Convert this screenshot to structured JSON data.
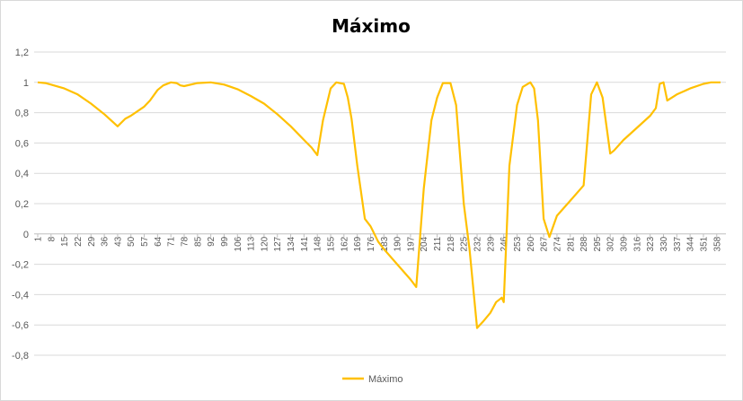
{
  "chart_data": {
    "type": "line",
    "title": "Máximo",
    "xlabel": "",
    "ylabel": "",
    "ylim": [
      -0.8,
      1.2
    ],
    "ystep": 0.2,
    "y_ticks": [
      "-0,8",
      "-0,6",
      "-0,4",
      "-0,2",
      "0",
      "0,2",
      "0,4",
      "0,6",
      "0,8",
      "1",
      "1,2"
    ],
    "x_range": [
      1,
      360
    ],
    "x_ticks": [
      1,
      8,
      15,
      22,
      29,
      36,
      43,
      50,
      57,
      64,
      71,
      78,
      85,
      92,
      99,
      106,
      113,
      120,
      127,
      134,
      141,
      148,
      155,
      162,
      169,
      176,
      183,
      190,
      197,
      204,
      211,
      218,
      225,
      232,
      239,
      246,
      253,
      260,
      267,
      274,
      281,
      288,
      295,
      302,
      309,
      316,
      323,
      330,
      337,
      344,
      351,
      358
    ],
    "grid": true,
    "legend": "bottom",
    "series": [
      {
        "name": "Máximo",
        "color": "#FFC000",
        "x": [
          1,
          5,
          8,
          15,
          22,
          29,
          36,
          43,
          47,
          50,
          57,
          60,
          64,
          67,
          71,
          74,
          76,
          78,
          85,
          92,
          99,
          106,
          113,
          120,
          127,
          134,
          141,
          145,
          148,
          151,
          155,
          158,
          162,
          164,
          166,
          169,
          173,
          176,
          180,
          183,
          190,
          197,
          200,
          204,
          208,
          211,
          214,
          218,
          221,
          225,
          228,
          232,
          235,
          239,
          242,
          245,
          246,
          249,
          253,
          256,
          260,
          262,
          264,
          267,
          270,
          274,
          281,
          288,
          290,
          292,
          295,
          298,
          302,
          304,
          309,
          316,
          323,
          326,
          328,
          330,
          332,
          337,
          344,
          351,
          355,
          358,
          360
        ],
        "y": [
          1.0,
          0.995,
          0.985,
          0.96,
          0.92,
          0.86,
          0.79,
          0.71,
          0.76,
          0.78,
          0.84,
          0.88,
          0.95,
          0.98,
          1.0,
          0.995,
          0.98,
          0.975,
          0.995,
          1.0,
          0.985,
          0.955,
          0.91,
          0.86,
          0.79,
          0.71,
          0.62,
          0.57,
          0.52,
          0.75,
          0.96,
          1.0,
          0.99,
          0.9,
          0.76,
          0.45,
          0.1,
          0.05,
          -0.05,
          -0.1,
          -0.2,
          -0.3,
          -0.35,
          0.3,
          0.75,
          0.9,
          0.995,
          0.995,
          0.85,
          0.2,
          -0.1,
          -0.62,
          -0.58,
          -0.52,
          -0.45,
          -0.42,
          -0.45,
          0.45,
          0.85,
          0.97,
          1.0,
          0.96,
          0.75,
          0.1,
          -0.02,
          0.12,
          0.22,
          0.32,
          0.62,
          0.92,
          1.0,
          0.9,
          0.53,
          0.55,
          0.62,
          0.7,
          0.78,
          0.83,
          0.99,
          1.0,
          0.88,
          0.92,
          0.96,
          0.99,
          1.0,
          1.0,
          1.0
        ]
      }
    ]
  }
}
